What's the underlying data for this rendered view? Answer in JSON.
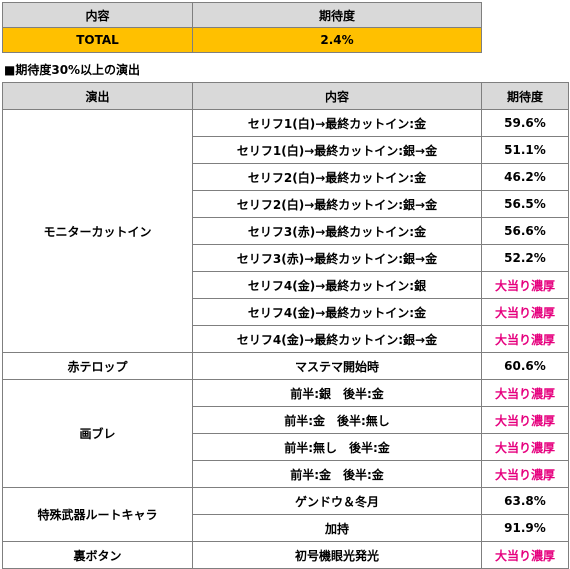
{
  "summary": {
    "headers": [
      "内容",
      "期待度"
    ],
    "row": {
      "label": "TOTAL",
      "value": "2.4%"
    },
    "highlight_color": "#ffc000"
  },
  "section_title": "■期待度30%以上の演出",
  "main": {
    "headers": [
      "演出",
      "内容",
      "期待度"
    ],
    "groups": [
      {
        "name": "モニターカットイン",
        "rows": [
          {
            "content": "セリフ1(白)→最終カットイン:金",
            "value": "59.6%"
          },
          {
            "content": "セリフ1(白)→最終カットイン:銀→金",
            "value": "51.1%"
          },
          {
            "content": "セリフ2(白)→最終カットイン:金",
            "value": "46.2%"
          },
          {
            "content": "セリフ2(白)→最終カットイン:銀→金",
            "value": "56.5%"
          },
          {
            "content": "セリフ3(赤)→最終カットイン:金",
            "value": "56.6%"
          },
          {
            "content": "セリフ3(赤)→最終カットイン:銀→金",
            "value": "52.2%"
          },
          {
            "content": "セリフ4(金)→最終カットイン:銀",
            "value": "大当り濃厚"
          },
          {
            "content": "セリフ4(金)→最終カットイン:金",
            "value": "大当り濃厚"
          },
          {
            "content": "セリフ4(金)→最終カットイン:銀→金",
            "value": "大当り濃厚"
          }
        ]
      },
      {
        "name": "赤テロップ",
        "rows": [
          {
            "content": "マステマ開始時",
            "value": "60.6%"
          }
        ]
      },
      {
        "name": "画ブレ",
        "rows": [
          {
            "content": "前半:銀　後半:金",
            "value": "大当り濃厚"
          },
          {
            "content": "前半:金　後半:無し",
            "value": "大当り濃厚"
          },
          {
            "content": "前半:無し　後半:金",
            "value": "大当り濃厚"
          },
          {
            "content": "前半:金　後半:金",
            "value": "大当り濃厚"
          }
        ]
      },
      {
        "name": "特殊武器ルートキャラ",
        "rows": [
          {
            "content": "ゲンドウ＆冬月",
            "value": "63.8%"
          },
          {
            "content": "加持",
            "value": "91.9%"
          }
        ]
      },
      {
        "name": "裏ボタン",
        "rows": [
          {
            "content": "初号機眼光発光",
            "value": "大当り濃厚"
          }
        ]
      }
    ],
    "highlight_text": "大当り濃厚",
    "highlight_text_color": "#e6007e"
  }
}
